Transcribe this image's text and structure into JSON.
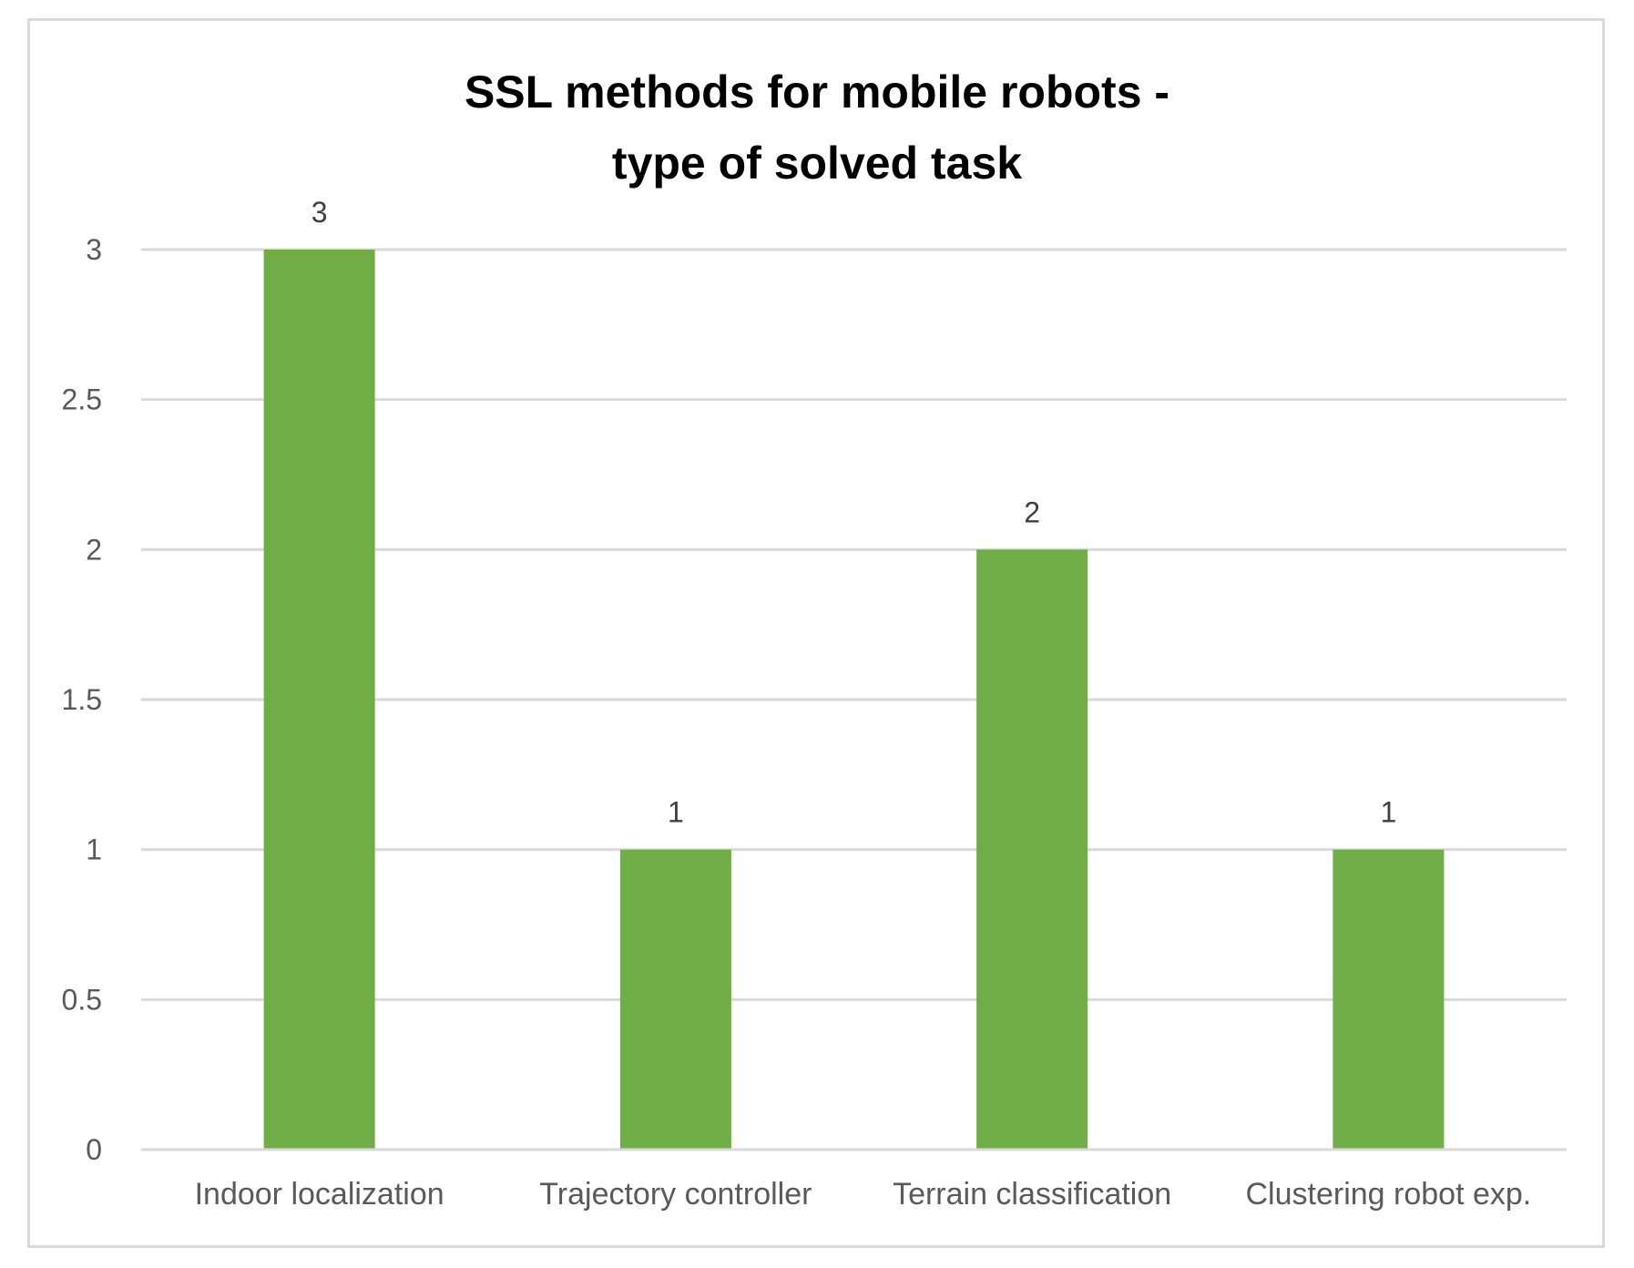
{
  "chart_data": {
    "type": "bar",
    "title_lines": [
      "SSL methods for mobile robots -",
      "type of solved task"
    ],
    "categories": [
      "Indoor localization",
      "Trajectory controller",
      "Terrain classification",
      "Clustering robot exp."
    ],
    "values": [
      3,
      1,
      2,
      1
    ],
    "data_labels": [
      "3",
      "1",
      "2",
      "1"
    ],
    "yticks": [
      "0",
      "0.5",
      "1",
      "1.5",
      "2",
      "2.5",
      "3"
    ],
    "ylim": [
      0,
      3
    ],
    "grid": true,
    "legend": "none",
    "bar_color": "#70ad47",
    "grid_color": "#d9d9d9"
  }
}
